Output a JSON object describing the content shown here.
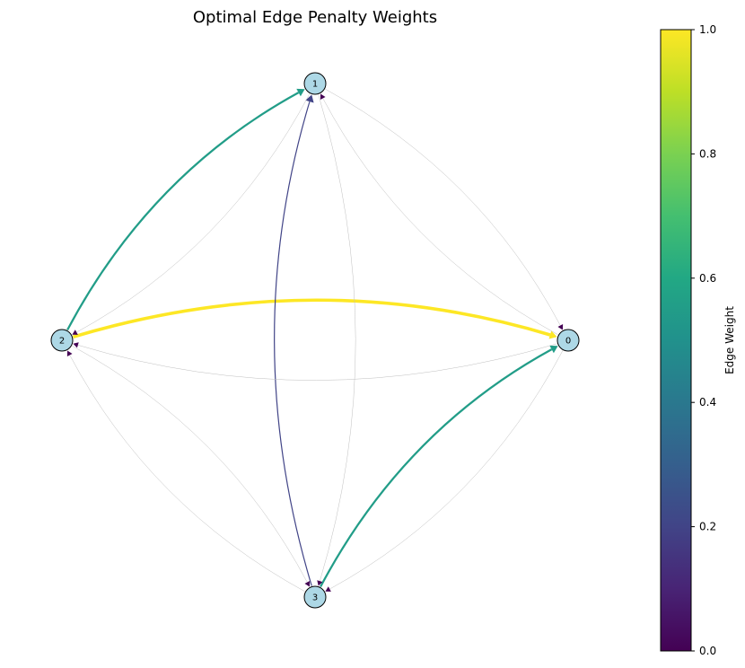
{
  "title": "Optimal Edge Penalty Weights",
  "colorbar": {
    "label": "Edge Weight",
    "min": 0.0,
    "max": 1.0,
    "ticks": [
      {
        "value": 0.0,
        "label": "0.0"
      },
      {
        "value": 0.2,
        "label": "0.2"
      },
      {
        "value": 0.4,
        "label": "0.4"
      },
      {
        "value": 0.6,
        "label": "0.6"
      },
      {
        "value": 0.8,
        "label": "0.8"
      },
      {
        "value": 1.0,
        "label": "1.0"
      }
    ],
    "colormap": "viridis"
  },
  "graph": {
    "node_color": "#add8e6",
    "nodes": [
      {
        "id": "n0",
        "label": "0"
      },
      {
        "id": "n1",
        "label": "1"
      },
      {
        "id": "n2",
        "label": "2"
      },
      {
        "id": "n3",
        "label": "3"
      }
    ],
    "edges": [
      {
        "from": "n2",
        "to": "n0",
        "weight": 1.0
      },
      {
        "from": "n2",
        "to": "n1",
        "weight": 0.55
      },
      {
        "from": "n3",
        "to": "n0",
        "weight": 0.55
      },
      {
        "from": "n3",
        "to": "n1",
        "weight": 0.2
      },
      {
        "from": "n0",
        "to": "n1",
        "weight": 0.0
      },
      {
        "from": "n1",
        "to": "n0",
        "weight": 0.0
      },
      {
        "from": "n0",
        "to": "n2",
        "weight": 0.0
      },
      {
        "from": "n0",
        "to": "n3",
        "weight": 0.0
      },
      {
        "from": "n1",
        "to": "n2",
        "weight": 0.0
      },
      {
        "from": "n1",
        "to": "n3",
        "weight": 0.0
      },
      {
        "from": "n2",
        "to": "n3",
        "weight": 0.0
      },
      {
        "from": "n3",
        "to": "n2",
        "weight": 0.0
      }
    ]
  }
}
